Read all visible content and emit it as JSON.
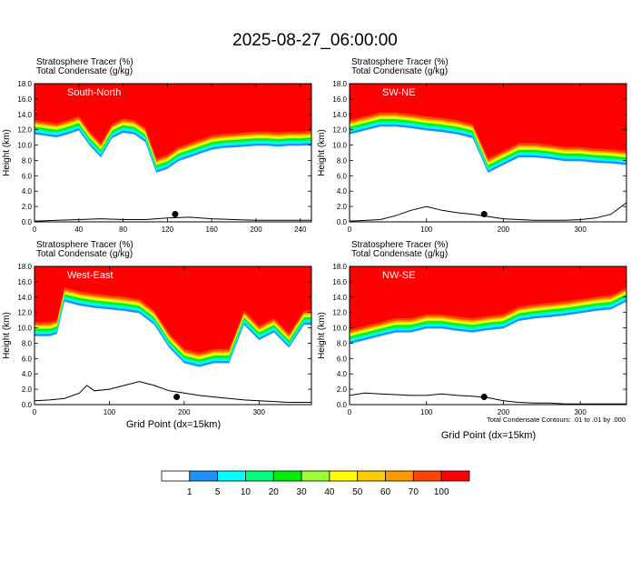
{
  "figure": {
    "title": "2025-08-27_06:00:00",
    "xlabel": "Grid Point (dx=15km)",
    "contour_note": "Total Condensate Contours: .01 to .01 by .000"
  },
  "colors": {
    "levels": [
      "#ffffff",
      "#1e90ff",
      "#00ffff",
      "#00ff7f",
      "#00ee00",
      "#99ff33",
      "#ffff00",
      "#ffcc00",
      "#ff9900",
      "#ff4500",
      "#ff0000"
    ],
    "contour": "#000000",
    "terrain": "#000000"
  },
  "colorbar": {
    "labels": [
      "1",
      "5",
      "10",
      "20",
      "30",
      "40",
      "50",
      "60",
      "70",
      "100"
    ]
  },
  "chart_data": [
    {
      "type": "heatmap",
      "panel": "South-North",
      "header_line1": "Stratosphere Tracer   (%)",
      "header_line2": "Total Condensate   (g/kg)",
      "ylabel": "Height (km)",
      "xlabel": "",
      "xlim": [
        0,
        250
      ],
      "ylim": [
        0,
        18
      ],
      "xticks": [
        "0",
        "40",
        "80",
        "120",
        "160",
        "200",
        "240"
      ],
      "yticks": [
        "0.0",
        "2.0",
        "4.0",
        "6.0",
        "8.0",
        "10.0",
        "12.0",
        "14.0",
        "16.0",
        "18.0"
      ],
      "tropopause_x": [
        0,
        10,
        20,
        30,
        40,
        50,
        60,
        70,
        80,
        90,
        100,
        110,
        120,
        130,
        140,
        150,
        160,
        170,
        180,
        190,
        200,
        210,
        220,
        230,
        240,
        250
      ],
      "tropopause_y": [
        13.0,
        12.8,
        12.6,
        13.0,
        13.5,
        11.5,
        10.0,
        12.5,
        13.2,
        13.0,
        12.0,
        8.0,
        8.5,
        9.5,
        10.0,
        10.5,
        11.0,
        11.2,
        11.3,
        11.4,
        11.5,
        11.5,
        11.4,
        11.5,
        11.5,
        11.6
      ],
      "terrain_x": [
        0,
        20,
        40,
        60,
        80,
        100,
        120,
        140,
        160,
        180,
        200,
        220,
        240,
        250
      ],
      "terrain_y": [
        0.1,
        0.2,
        0.3,
        0.4,
        0.3,
        0.3,
        0.5,
        0.6,
        0.4,
        0.3,
        0.2,
        0.2,
        0.2,
        0.2
      ],
      "marker_x": 127,
      "marker_y": 1.0
    },
    {
      "type": "heatmap",
      "panel": "SW-NE",
      "header_line1": "Stratosphere Tracer   (%)",
      "header_line2": "Total Condensate   (g/kg)",
      "ylabel": "Height (km)",
      "xlabel": "",
      "xlim": [
        0,
        360
      ],
      "ylim": [
        0,
        18
      ],
      "xticks": [
        "0",
        "100",
        "200",
        "300"
      ],
      "yticks": [
        "0.0",
        "2.0",
        "4.0",
        "6.0",
        "8.0",
        "10.0",
        "12.0",
        "14.0",
        "16.0",
        "18.0"
      ],
      "tropopause_x": [
        0,
        20,
        40,
        60,
        80,
        100,
        120,
        140,
        160,
        180,
        200,
        220,
        240,
        260,
        280,
        300,
        320,
        340,
        360
      ],
      "tropopause_y": [
        13.0,
        13.5,
        14.0,
        14.0,
        13.8,
        13.5,
        13.3,
        13.0,
        12.5,
        8.0,
        9.0,
        10.0,
        10.0,
        9.8,
        9.5,
        9.5,
        9.3,
        9.2,
        9.0
      ],
      "terrain_x": [
        0,
        40,
        60,
        80,
        100,
        120,
        140,
        160,
        180,
        200,
        220,
        240,
        260,
        280,
        300,
        320,
        340,
        360
      ],
      "terrain_y": [
        0.1,
        0.3,
        0.8,
        1.5,
        2.0,
        1.5,
        1.2,
        1.0,
        0.7,
        0.4,
        0.3,
        0.2,
        0.2,
        0.2,
        0.3,
        0.5,
        1.0,
        2.5
      ],
      "marker_x": 175,
      "marker_y": 1.0
    },
    {
      "type": "heatmap",
      "panel": "West-East",
      "header_line1": "Stratosphere Tracer   (%)",
      "header_line2": "Total Condensate   (g/kg)",
      "ylabel": "Height (km)",
      "xlabel": "Grid Point (dx=15km)",
      "xlim": [
        0,
        370
      ],
      "ylim": [
        0,
        18
      ],
      "xticks": [
        "0",
        "100",
        "200",
        "300"
      ],
      "yticks": [
        "0.0",
        "2.0",
        "4.0",
        "6.0",
        "8.0",
        "10.0",
        "12.0",
        "14.0",
        "16.0",
        "18.0"
      ],
      "tropopause_x": [
        0,
        20,
        30,
        40,
        60,
        80,
        100,
        120,
        140,
        160,
        180,
        200,
        220,
        240,
        260,
        280,
        300,
        320,
        340,
        360,
        370
      ],
      "tropopause_y": [
        10.5,
        10.5,
        10.8,
        15.0,
        14.5,
        14.2,
        14.0,
        13.8,
        13.5,
        12.0,
        9.0,
        7.0,
        6.5,
        7.0,
        7.0,
        12.0,
        10.0,
        11.0,
        9.0,
        12.0,
        12.0
      ],
      "terrain_x": [
        0,
        20,
        40,
        60,
        70,
        80,
        100,
        120,
        140,
        160,
        180,
        200,
        220,
        240,
        260,
        280,
        300,
        320,
        340,
        360,
        370
      ],
      "terrain_y": [
        0.5,
        0.6,
        0.8,
        1.5,
        2.5,
        1.8,
        2.0,
        2.5,
        3.0,
        2.5,
        1.8,
        1.5,
        1.2,
        1.0,
        0.8,
        0.6,
        0.5,
        0.4,
        0.3,
        0.3,
        0.3
      ],
      "marker_x": 190,
      "marker_y": 1.0
    },
    {
      "type": "heatmap",
      "panel": "NW-SE",
      "header_line1": "Stratosphere Tracer   (%)",
      "header_line2": "Total Condensate   (g/kg)",
      "ylabel": "Height (km)",
      "xlabel": "Grid Point (dx=15km)",
      "xlim": [
        0,
        360
      ],
      "ylim": [
        0,
        18
      ],
      "xticks": [
        "0",
        "100",
        "200",
        "300"
      ],
      "yticks": [
        "0.0",
        "2.0",
        "4.0",
        "6.0",
        "8.0",
        "10.0",
        "12.0",
        "14.0",
        "16.0",
        "18.0"
      ],
      "tropopause_x": [
        0,
        20,
        40,
        60,
        80,
        100,
        120,
        140,
        160,
        180,
        200,
        220,
        240,
        260,
        280,
        300,
        320,
        340,
        360
      ],
      "tropopause_y": [
        9.5,
        10.0,
        10.5,
        11.0,
        11.0,
        11.5,
        11.5,
        11.2,
        11.0,
        11.3,
        11.5,
        12.5,
        12.8,
        13.0,
        13.2,
        13.5,
        13.8,
        14.0,
        15.0
      ],
      "terrain_x": [
        0,
        20,
        40,
        60,
        80,
        100,
        120,
        140,
        160,
        180,
        200,
        220,
        240,
        260,
        280,
        300,
        320,
        340,
        360
      ],
      "terrain_y": [
        1.2,
        1.5,
        1.4,
        1.3,
        1.2,
        1.2,
        1.4,
        1.2,
        1.1,
        0.9,
        0.5,
        0.3,
        0.2,
        0.2,
        0.1,
        0.1,
        0.1,
        0.1,
        0.1
      ],
      "marker_x": 175,
      "marker_y": 1.0
    }
  ]
}
